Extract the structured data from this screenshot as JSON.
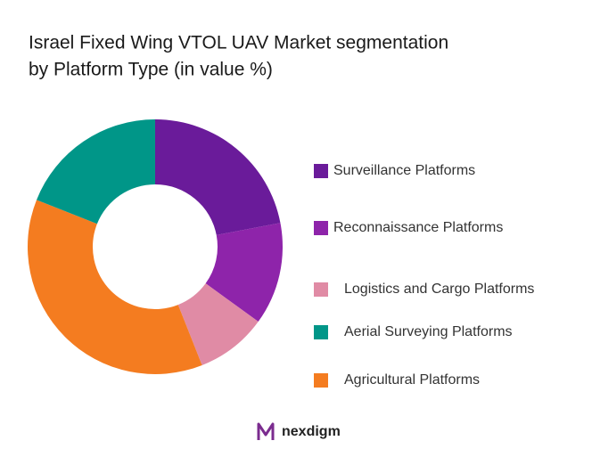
{
  "chart_data": {
    "type": "donut",
    "title": [
      "Israel Fixed Wing VTOL UAV Market segmentation",
      "by Platform Type (in value %)"
    ],
    "categories": [
      "Surveillance Platforms",
      "Reconnaissance Platforms",
      "Logistics and Cargo Platforms",
      "Aerial Surveying Platforms",
      "Agricultural Platforms"
    ],
    "values": [
      22,
      13,
      9,
      19,
      37
    ],
    "colors": [
      "#6a1b9a",
      "#8e24aa",
      "#e08ba5",
      "#009688",
      "#f47c20"
    ],
    "legend": "right"
  },
  "brand": "nexdigm"
}
